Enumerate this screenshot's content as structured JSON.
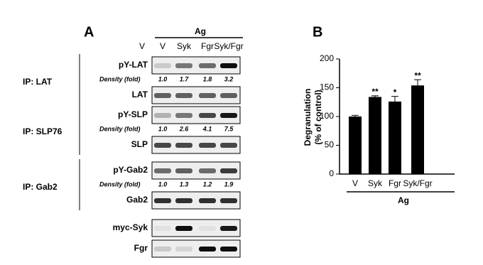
{
  "panel_a": {
    "letter": "A",
    "treatment": "Ag",
    "lanes": [
      "V",
      "V",
      "Syk",
      "Fgr",
      "Syk/Fgr"
    ],
    "groups": [
      {
        "label": "IP: LAT",
        "blots": [
          "pY-LAT",
          "LAT"
        ],
        "density_label": "Density (fold)",
        "density": [
          "1.0",
          "1.7",
          "1.8",
          "3.2"
        ]
      },
      {
        "label": "IP: SLP76",
        "blots": [
          "pY-SLP",
          "SLP"
        ],
        "density_label": "Density (fold)",
        "density": [
          "1.0",
          "2.6",
          "4.1",
          "7.5"
        ]
      },
      {
        "label": "IP: Gab2",
        "blots": [
          "pY-Gab2",
          "Gab2"
        ],
        "density_label": "Density (fold)",
        "density": [
          "1.0",
          "1.3",
          "1.2",
          "1.9"
        ]
      }
    ],
    "lysate_blots": [
      "myc-Syk",
      "Fgr"
    ]
  },
  "chart_data": {
    "type": "bar",
    "letter": "B",
    "y_label": [
      "Degranulation",
      "(% of control)"
    ],
    "x_label": "Ag",
    "categories": [
      "V",
      "Syk",
      "Fgr",
      "Syk/Fgr"
    ],
    "values": [
      100,
      134,
      126,
      154
    ],
    "errors": [
      2,
      2,
      9,
      10
    ],
    "significance": [
      null,
      "**",
      "*",
      "**"
    ],
    "color": "#000000",
    "ylim": [
      0,
      200
    ],
    "yticks": [
      0,
      50,
      100,
      150,
      200
    ]
  }
}
